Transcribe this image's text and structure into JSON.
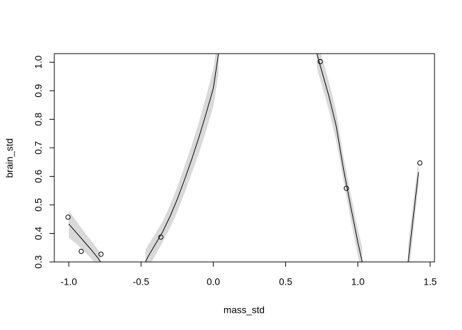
{
  "chart_data": {
    "type": "scatter",
    "xlabel": "mass_std",
    "ylabel": "brain_std",
    "xlim": [
      -1.1,
      1.53
    ],
    "ylim": [
      0.3,
      1.03
    ],
    "xticks": [
      {
        "value": -1,
        "label": "-1.0"
      },
      -0.5,
      {
        "value": 0,
        "label": "0.0"
      },
      0.5,
      {
        "value": 1,
        "label": "1.0"
      },
      1.5
    ],
    "yticks": [
      0.3,
      0.4,
      0.5,
      0.6,
      0.7,
      0.8,
      0.9,
      {
        "value": 1,
        "label": "1.0"
      }
    ],
    "points": {
      "x": [
        -1.005,
        -0.914,
        -0.777,
        -0.363,
        0.74,
        0.92,
        1.429
      ],
      "y": [
        0.457,
        0.337,
        0.327,
        0.387,
        1.002,
        0.558,
        0.647
      ]
    },
    "fit": {
      "x": [
        -1.0,
        -0.95,
        -0.9,
        -0.85,
        -0.8,
        -0.78,
        -0.6,
        -0.47,
        -0.45,
        -0.4,
        -0.35,
        -0.3,
        -0.25,
        -0.2,
        -0.15,
        -0.1,
        -0.05,
        0,
        0.036,
        0.4,
        0.716,
        0.75,
        0.8,
        0.85,
        0.9,
        0.95,
        1.0,
        1.03,
        1.2,
        1.348,
        1.35,
        1.4,
        1.42
      ],
      "y": [
        0.433,
        0.404,
        0.375,
        0.346,
        0.315,
        0.3,
        null,
        0.3,
        0.32,
        0.363,
        0.406,
        0.459,
        0.519,
        0.587,
        0.659,
        0.736,
        0.82,
        0.909,
        1.03,
        null,
        1.03,
        0.969,
        0.88,
        0.776,
        0.627,
        0.495,
        0.368,
        0.3,
        null,
        0.3,
        0.31,
        0.531,
        0.615
      ],
      "lower": [
        0.385,
        0.365,
        0.34,
        0.315,
        0.285,
        0.27,
        null,
        0.26,
        0.28,
        0.325,
        0.37,
        0.42,
        0.475,
        0.54,
        0.61,
        0.68,
        0.76,
        0.845,
        0.96,
        null,
        0.98,
        0.92,
        0.83,
        0.725,
        0.585,
        0.45,
        0.32,
        0.25,
        null,
        0.24,
        0.25,
        0.48,
        0.57
      ],
      "upper": [
        0.48,
        0.445,
        0.41,
        0.378,
        0.345,
        0.33,
        null,
        0.34,
        0.36,
        0.4,
        0.442,
        0.498,
        0.562,
        0.634,
        0.708,
        0.79,
        0.88,
        0.975,
        1.1,
        null,
        1.08,
        1.02,
        0.93,
        0.828,
        0.67,
        0.54,
        0.415,
        0.35,
        null,
        0.36,
        0.37,
        0.58,
        0.66
      ]
    }
  }
}
